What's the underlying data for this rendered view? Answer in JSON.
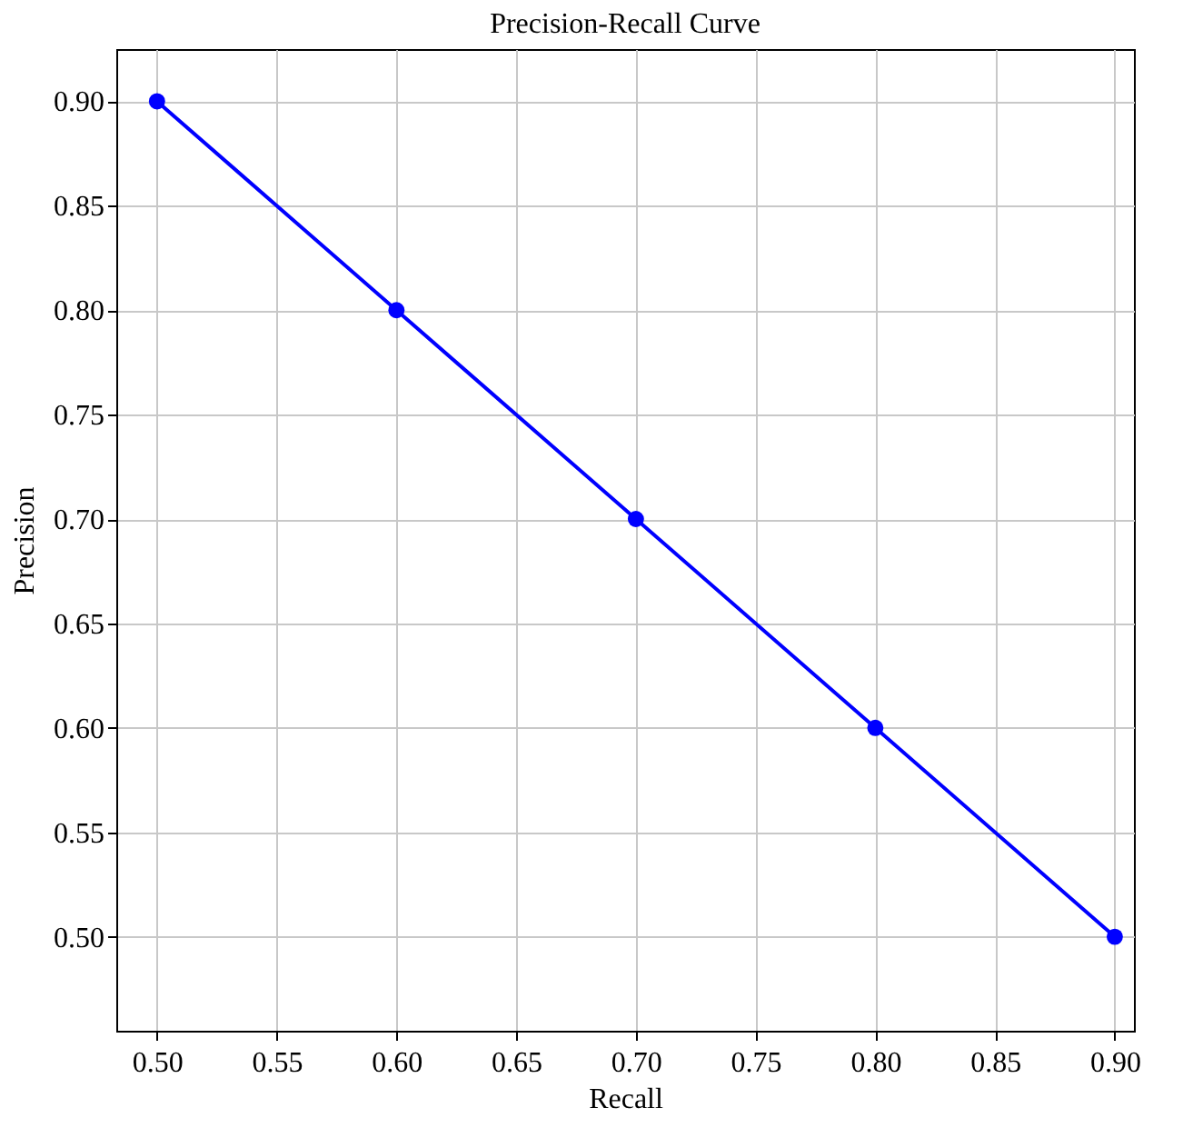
{
  "chart_data": {
    "type": "line",
    "title": "Precision-Recall Curve",
    "xlabel": "Recall",
    "ylabel": "Precision",
    "x": [
      0.5,
      0.6,
      0.7,
      0.8,
      0.9
    ],
    "series": [
      {
        "color": "#0000ff",
        "values": [
          0.9,
          0.8,
          0.7,
          0.6,
          0.5
        ]
      }
    ],
    "xlim": [
      0.483,
      0.908
    ],
    "ylim": [
      0.455,
      0.925
    ],
    "xticks": [
      {
        "value": 0.5,
        "label": "0.50"
      },
      {
        "value": 0.55,
        "label": "0.55"
      },
      {
        "value": 0.6,
        "label": "0.60"
      },
      {
        "value": 0.65,
        "label": "0.65"
      },
      {
        "value": 0.7,
        "label": "0.70"
      },
      {
        "value": 0.75,
        "label": "0.75"
      },
      {
        "value": 0.8,
        "label": "0.80"
      },
      {
        "value": 0.85,
        "label": "0.85"
      },
      {
        "value": 0.9,
        "label": "0.90"
      }
    ],
    "yticks": [
      {
        "value": 0.5,
        "label": "0.50"
      },
      {
        "value": 0.55,
        "label": "0.55"
      },
      {
        "value": 0.6,
        "label": "0.60"
      },
      {
        "value": 0.65,
        "label": "0.65"
      },
      {
        "value": 0.7,
        "label": "0.70"
      },
      {
        "value": 0.75,
        "label": "0.75"
      },
      {
        "value": 0.8,
        "label": "0.80"
      },
      {
        "value": 0.85,
        "label": "0.85"
      },
      {
        "value": 0.9,
        "label": "0.90"
      }
    ],
    "grid": true,
    "marker": "circle",
    "line_style": "solid",
    "legend": false
  }
}
